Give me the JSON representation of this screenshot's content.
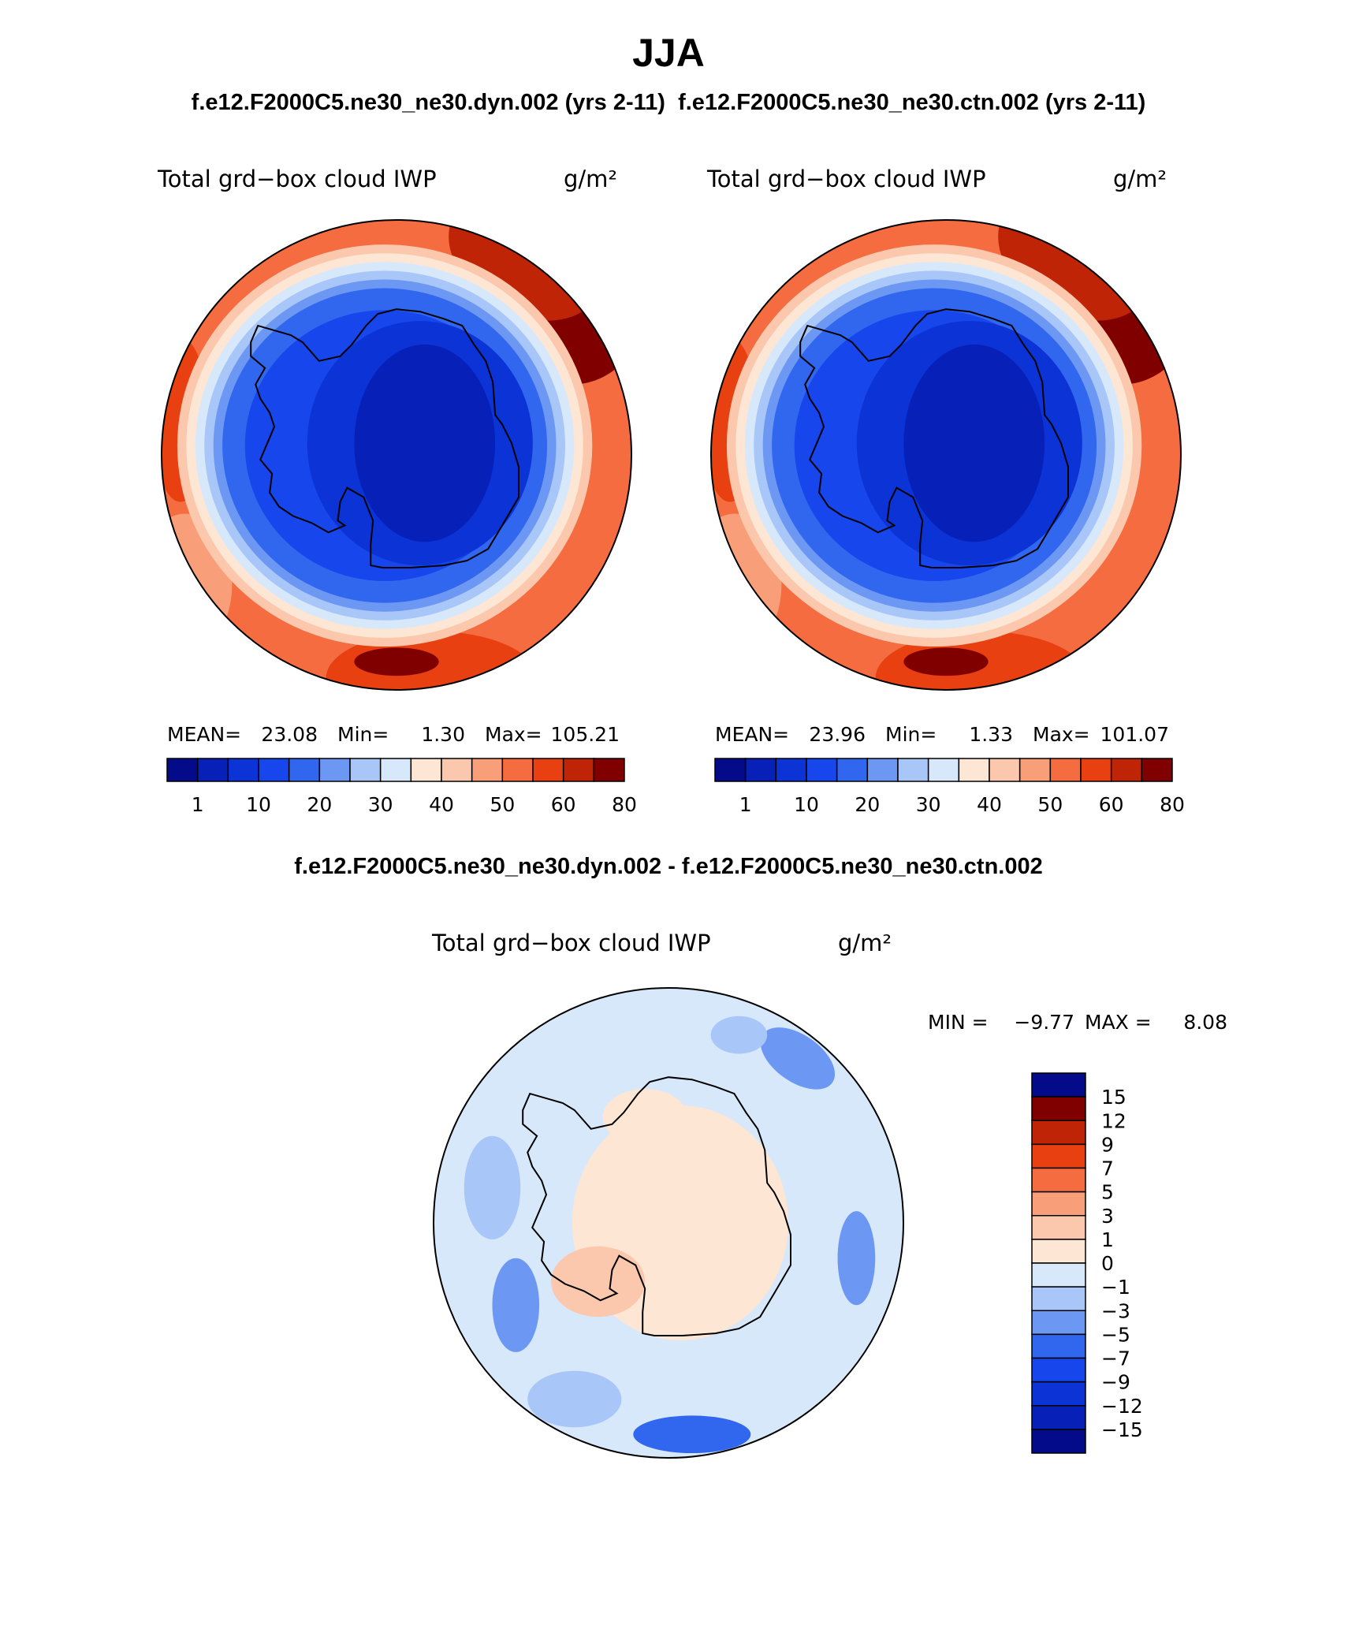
{
  "title": "JJA",
  "subtitle": "f.e12.F2000C5.ne30_ne30.dyn.002 (yrs 2-11)  f.e12.F2000C5.ne30_ne30.ctn.002 (yrs 2-11)",
  "palettes": {
    "abs": [
      "#040b8a",
      "#0720b8",
      "#0b33d6",
      "#1646ec",
      "#3167ee",
      "#6c98f4",
      "#a9c6f8",
      "#d8e8fb",
      "#fde6d4",
      "#fbc8ad",
      "#f89e78",
      "#f46c3f",
      "#e84010",
      "#c02406",
      "#800000"
    ],
    "diff": [
      "#040b8a",
      "#0720b8",
      "#0b33d6",
      "#1646ec",
      "#3167ee",
      "#6c98f4",
      "#a9c6f8",
      "#d8e8fb",
      "#fde6d4",
      "#fbc8ad",
      "#f89e78",
      "#f46c3f",
      "#e84010",
      "#c02406",
      "#800000"
    ]
  },
  "chart_data": [
    {
      "type": "heatmap",
      "projection": "south-polar-stereographic",
      "title": "Total grd−box cloud IWP",
      "units": "g/m²",
      "stats": {
        "mean_label": "MEAN=",
        "mean": "23.08",
        "min_label": "Min=",
        "min": "1.30",
        "max_label": "Max=",
        "max": "105.21"
      },
      "colorbar": {
        "orientation": "horizontal",
        "tick_labels": [
          "1",
          "10",
          "20",
          "30",
          "40",
          "50",
          "60",
          "80"
        ],
        "n_colors": 15
      },
      "levels": [
        1,
        5,
        10,
        15,
        20,
        25,
        30,
        35,
        40,
        45,
        50,
        55,
        60,
        70,
        80
      ]
    },
    {
      "type": "heatmap",
      "projection": "south-polar-stereographic",
      "title": "Total grd−box cloud IWP",
      "units": "g/m²",
      "stats": {
        "mean_label": "MEAN=",
        "mean": "23.96",
        "min_label": "Min=",
        "min": "1.33",
        "max_label": "Max=",
        "max": "101.07"
      },
      "colorbar": {
        "orientation": "horizontal",
        "tick_labels": [
          "1",
          "10",
          "20",
          "30",
          "40",
          "50",
          "60",
          "80"
        ],
        "n_colors": 15
      },
      "levels": [
        1,
        5,
        10,
        15,
        20,
        25,
        30,
        35,
        40,
        45,
        50,
        55,
        60,
        70,
        80
      ]
    },
    {
      "type": "heatmap",
      "projection": "south-polar-stereographic",
      "heading": "f.e12.F2000C5.ne30_ne30.dyn.002 - f.e12.F2000C5.ne30_ne30.ctn.002",
      "title": "Total grd−box cloud IWP",
      "units": "g/m²",
      "stats": {
        "min_label": "MIN =",
        "min": "−9.77",
        "max_label": "MAX =",
        "max": "8.08"
      },
      "colorbar": {
        "orientation": "vertical",
        "tick_labels": [
          "15",
          "12",
          "9",
          "7",
          "5",
          "3",
          "1",
          "0",
          "−1",
          "−3",
          "−5",
          "−7",
          "−9",
          "−12",
          "−15"
        ],
        "n_colors": 16
      },
      "levels": [
        -15,
        -12,
        -9,
        -7,
        -5,
        -3,
        -1,
        0,
        1,
        3,
        5,
        7,
        9,
        12,
        15
      ]
    }
  ]
}
